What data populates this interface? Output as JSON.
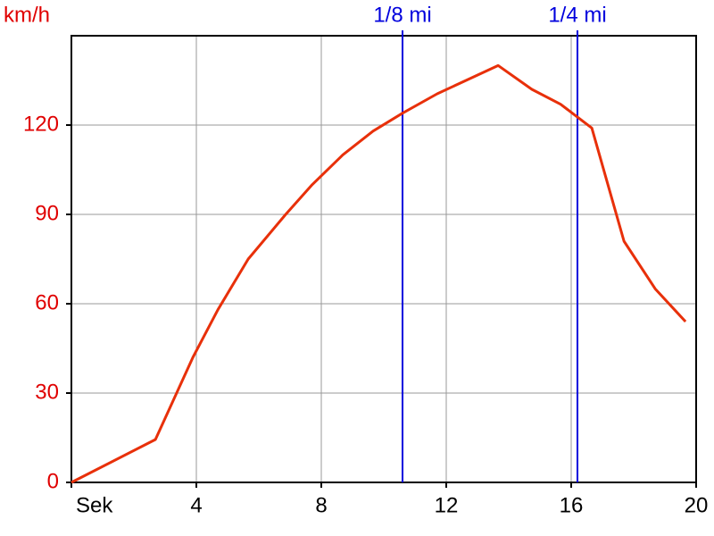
{
  "chart_data": {
    "type": "line",
    "y_label": "km/h",
    "x": [
      0,
      2.69,
      3.89,
      4.69,
      5.66,
      6.86,
      7.71,
      8.69,
      9.66,
      10.6,
      11.71,
      13.66,
      14.74,
      15.66,
      16.66,
      17.69,
      18.69,
      19.66
    ],
    "series": [
      {
        "color": "#e8300a",
        "values": [
          0,
          14.4,
          42,
          58,
          75,
          90,
          100,
          110,
          118,
          124,
          130.5,
          140,
          132,
          127,
          119,
          81,
          65,
          54
        ]
      }
    ],
    "xlim": [
      0,
      20
    ],
    "xticks": [
      {
        "value": 0,
        "label": "Sek"
      },
      4,
      8,
      12,
      16,
      20
    ],
    "ylim": [
      0,
      150
    ],
    "yticks": [
      0,
      30,
      60,
      90,
      120
    ],
    "grid": true,
    "markers": [
      {
        "label": "1/8 mi",
        "x": 10.6,
        "color": "#0000dd"
      },
      {
        "label": "1/4 mi",
        "x": 16.2,
        "color": "#0000dd"
      }
    ],
    "axis_label_color": "#e00000"
  }
}
